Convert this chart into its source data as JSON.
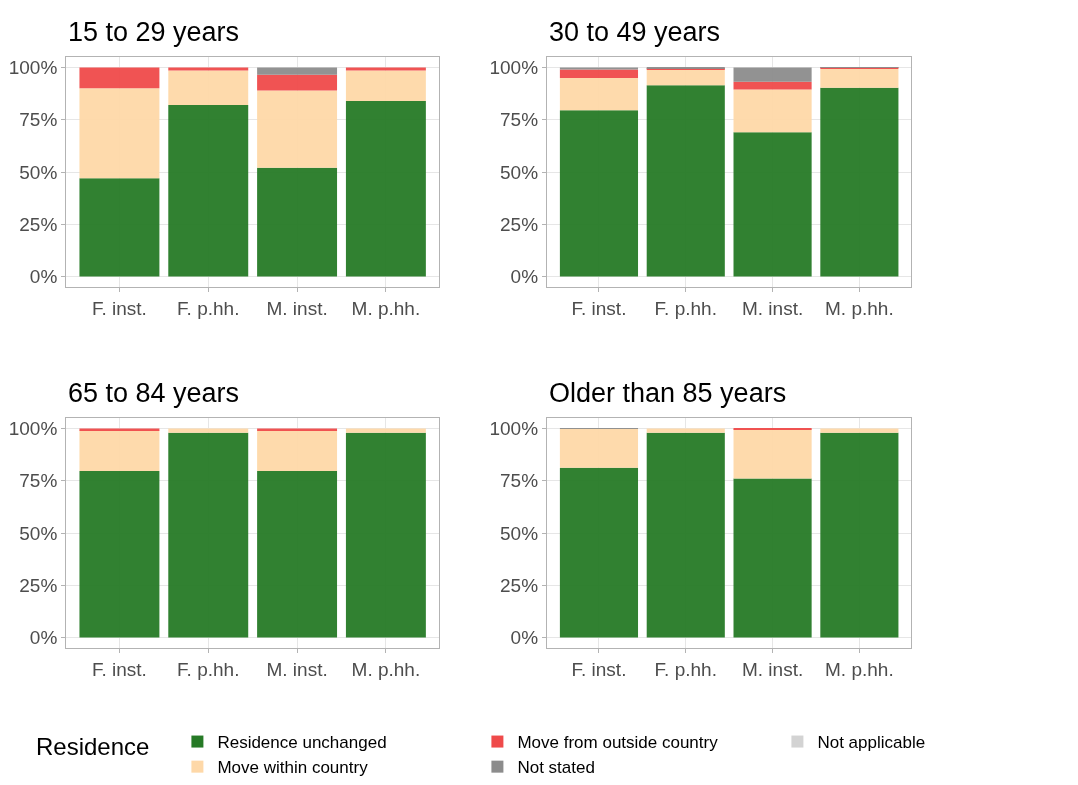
{
  "chart_data": [
    {
      "type": "bar",
      "title": "15 to 29 years",
      "stacked": true,
      "categories": [
        "F. inst.",
        "F. p.hh.",
        "M. inst.",
        "M. p.hh."
      ],
      "ylim": [
        -5,
        105
      ],
      "yticks": [
        {
          "value": 0,
          "label": "0%"
        },
        {
          "value": 25,
          "label": "25%"
        },
        {
          "value": 50,
          "label": "50%"
        },
        {
          "value": 75,
          "label": "75%"
        },
        {
          "value": 100,
          "label": "100%"
        }
      ],
      "grid": true,
      "legend": "bottom",
      "legend_title": "Residence",
      "series": [
        {
          "name": "Residence unchanged",
          "color": "#267a26",
          "values": [
            47,
            82,
            52,
            84
          ]
        },
        {
          "name": "Move within country",
          "color": "#fed8a8",
          "values": [
            43,
            16.5,
            37,
            14.5
          ]
        },
        {
          "name": "Move from outside country",
          "color": "#ef4a4a",
          "values": [
            10,
            1.5,
            7.5,
            1.5
          ]
        },
        {
          "name": "Not stated",
          "color": "#8c8c8c",
          "values": [
            0,
            0,
            3.5,
            0
          ]
        },
        {
          "name": "Not applicable",
          "color": "#d3d3d3",
          "values": [
            0,
            0,
            0,
            0
          ]
        }
      ]
    },
    {
      "type": "bar",
      "title": "30 to 49 years",
      "stacked": true,
      "categories": [
        "F. inst.",
        "F. p.hh.",
        "M. inst.",
        "M. p.hh."
      ],
      "ylim": [
        -5,
        105
      ],
      "yticks": [
        {
          "value": 0,
          "label": "0%"
        },
        {
          "value": 25,
          "label": "25%"
        },
        {
          "value": 50,
          "label": "50%"
        },
        {
          "value": 75,
          "label": "75%"
        },
        {
          "value": 100,
          "label": "100%"
        }
      ],
      "grid": true,
      "series": [
        {
          "color": "#267a26",
          "values": [
            79.5,
            91.5,
            69,
            90.3
          ]
        },
        {
          "color": "#fed8a8",
          "values": [
            15.5,
            7.5,
            20.5,
            9
          ]
        },
        {
          "color": "#ef4a4a",
          "values": [
            4,
            0.7,
            3.7,
            0.5
          ]
        },
        {
          "color": "#8c8c8c",
          "values": [
            1,
            0.3,
            6.8,
            0.2
          ]
        },
        {
          "color": "#d3d3d3",
          "values": [
            0,
            0,
            0,
            0
          ]
        }
      ]
    },
    {
      "type": "bar",
      "title": "65 to 84 years",
      "stacked": true,
      "categories": [
        "F. inst.",
        "F. p.hh.",
        "M. inst.",
        "M. p.hh."
      ],
      "ylim": [
        -5,
        105
      ],
      "yticks": [
        {
          "value": 0,
          "label": "0%"
        },
        {
          "value": 25,
          "label": "25%"
        },
        {
          "value": 50,
          "label": "50%"
        },
        {
          "value": 75,
          "label": "75%"
        },
        {
          "value": 100,
          "label": "100%"
        }
      ],
      "grid": true,
      "series": [
        {
          "color": "#267a26",
          "values": [
            79.7,
            98,
            79.7,
            98
          ]
        },
        {
          "color": "#fed8a8",
          "values": [
            19.5,
            2,
            19.5,
            2
          ]
        },
        {
          "color": "#ef4a4a",
          "values": [
            0.8,
            0,
            0.8,
            0
          ]
        },
        {
          "color": "#8c8c8c",
          "values": [
            0,
            0,
            0,
            0
          ]
        },
        {
          "color": "#d3d3d3",
          "values": [
            0,
            0,
            0,
            0
          ]
        }
      ]
    },
    {
      "type": "bar",
      "title": "Older than 85 years",
      "stacked": true,
      "categories": [
        "F. inst.",
        "F. p.hh.",
        "M. inst.",
        "M. p.hh."
      ],
      "ylim": [
        -5,
        105
      ],
      "yticks": [
        {
          "value": 0,
          "label": "0%"
        },
        {
          "value": 25,
          "label": "25%"
        },
        {
          "value": 50,
          "label": "50%"
        },
        {
          "value": 75,
          "label": "75%"
        },
        {
          "value": 100,
          "label": "100%"
        }
      ],
      "grid": true,
      "series": [
        {
          "color": "#267a26",
          "values": [
            81.2,
            98,
            76.1,
            98
          ]
        },
        {
          "color": "#fed8a8",
          "values": [
            18.6,
            2,
            23.6,
            2
          ]
        },
        {
          "color": "#ef4a4a",
          "values": [
            0,
            0,
            0.3,
            0
          ]
        },
        {
          "color": "#8c8c8c",
          "values": [
            0.2,
            0,
            0,
            0
          ]
        },
        {
          "color": "#d3d3d3",
          "values": [
            0,
            0,
            0,
            0
          ]
        }
      ]
    }
  ]
}
